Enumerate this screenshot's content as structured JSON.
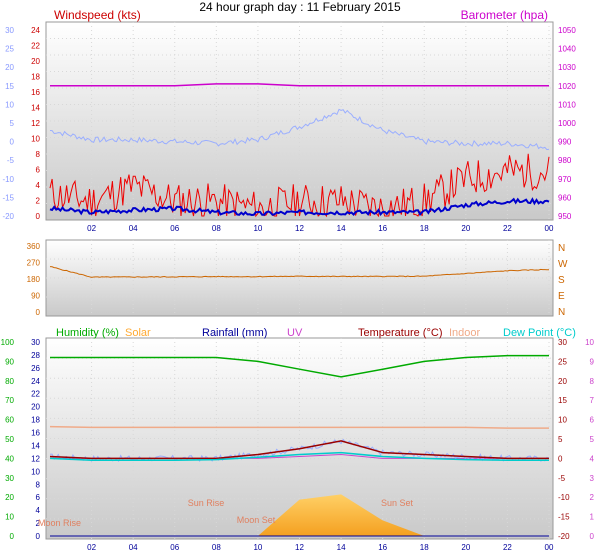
{
  "title": "24 hour graph day : 11 February 2015",
  "time_ticks": [
    "02",
    "04",
    "06",
    "08",
    "10",
    "12",
    "14",
    "16",
    "18",
    "20",
    "22",
    "00"
  ],
  "colors": {
    "wind_speed": "#ee0000",
    "wind_avg": "#0000cc",
    "temp_in_wind_panel": "#9aaeff",
    "barometer": "#cc00cc",
    "direction": "#cc6600",
    "humidity": "#00aa00",
    "solar": "#ffaa33",
    "rainfall": "#000099",
    "uv": "#cc44cc",
    "temperature": "#990000",
    "indoor": "#f0aa88",
    "dewpoint": "#00cccc"
  },
  "chart_data": [
    {
      "type": "line",
      "panel": "wind",
      "title": "Windspeed (kts)",
      "right_title": "Barometer (hpa)",
      "x": [
        "00",
        "02",
        "04",
        "06",
        "08",
        "10",
        "12",
        "14",
        "16",
        "18",
        "20",
        "22",
        "00"
      ],
      "series": [
        {
          "name": "Windspeed (kts)",
          "axis": "left",
          "values": [
            3,
            2,
            4,
            2,
            2,
            1,
            2,
            2,
            1,
            2,
            5,
            6,
            6
          ]
        },
        {
          "name": "Barometer (hpa)",
          "axis": "right",
          "values": [
            1020,
            1020,
            1020,
            1020,
            1021,
            1021,
            1020,
            1020,
            1020,
            1020,
            1020,
            1020,
            1020
          ]
        }
      ],
      "avg_wind_values": [
        1,
        0.5,
        0.8,
        1,
        0.5,
        0.3,
        0.5,
        0.5,
        0.5,
        0.5,
        1.5,
        2,
        2
      ],
      "temp_overlay_values": [
        3,
        0.5,
        0.5,
        0,
        -0.5,
        0.5,
        4,
        8.5,
        3,
        0,
        -0.5,
        -0.5,
        -1.5
      ],
      "y_left_ticks": [
        "0",
        "2",
        "4",
        "6",
        "8",
        "10",
        "12",
        "14",
        "16",
        "18",
        "20",
        "22",
        "24"
      ],
      "y_left_range": [
        0,
        25
      ],
      "y_far_left_ticks": [
        "-20",
        "-15",
        "-10",
        "-5",
        "0",
        "5",
        "10",
        "15",
        "20",
        "25",
        "30"
      ],
      "y_far_left_range": [
        -20,
        30
      ],
      "y_right_ticks": [
        "950",
        "960",
        "970",
        "980",
        "990",
        "1000",
        "1010",
        "1020",
        "1030",
        "1040",
        "1050"
      ],
      "y_right_range": [
        950,
        1050
      ]
    },
    {
      "type": "line",
      "panel": "direction",
      "x": [
        "00",
        "02",
        "04",
        "06",
        "08",
        "10",
        "12",
        "14",
        "16",
        "18",
        "20",
        "22",
        "00"
      ],
      "series": [
        {
          "name": "Wind Direction",
          "values": [
            248,
            190,
            191,
            192,
            193,
            193,
            195,
            194,
            194,
            195,
            210,
            225,
            232
          ]
        }
      ],
      "y_ticks": [
        "0",
        "90",
        "180",
        "270",
        "360"
      ],
      "y_range": [
        0,
        360
      ],
      "compass_labels": [
        "N",
        "W",
        "S",
        "E",
        "N"
      ]
    },
    {
      "type": "line",
      "panel": "humidity",
      "x": [
        "00",
        "02",
        "04",
        "06",
        "08",
        "10",
        "12",
        "14",
        "16",
        "18",
        "20",
        "22",
        "00"
      ],
      "series": [
        {
          "name": "Humidity (%)",
          "axis": "humidity",
          "values": [
            92,
            92,
            92,
            92,
            92,
            90,
            86,
            82,
            86,
            90,
            92,
            93,
            93
          ]
        },
        {
          "name": "Temperature (°C)",
          "axis": "temperature",
          "values": [
            0.5,
            0,
            0,
            0,
            0,
            1,
            2.5,
            4.5,
            1.5,
            1,
            0.5,
            0,
            0
          ]
        },
        {
          "name": "Indoor",
          "axis": "temperature",
          "values": [
            8.2,
            8,
            8,
            8,
            8,
            8,
            8,
            8,
            8,
            8,
            8,
            7.8,
            7.8
          ]
        },
        {
          "name": "Dew Point (°C)",
          "axis": "temperature",
          "values": [
            0,
            -0.5,
            -0.5,
            -0.5,
            -0.3,
            0.3,
            1,
            1.5,
            0.5,
            0,
            -0.3,
            -0.5,
            -0.5
          ]
        },
        {
          "name": "Solar",
          "axis": "solar",
          "values": [
            0,
            0,
            0,
            0,
            0,
            0,
            140,
            160,
            60,
            0,
            0,
            0,
            0
          ]
        },
        {
          "name": "UV",
          "axis": "temperature",
          "values": [
            0,
            0,
            0,
            0,
            0,
            0,
            0.5,
            1,
            0,
            0,
            0,
            0,
            0
          ]
        },
        {
          "name": "Rainfall (mm)",
          "axis": "rain",
          "values": [
            0,
            0,
            0,
            0,
            0,
            0,
            0,
            0,
            0,
            0,
            0,
            0,
            0
          ]
        }
      ],
      "y_humidity_ticks": [
        "0",
        "10",
        "20",
        "30",
        "40",
        "50",
        "60",
        "70",
        "80",
        "90",
        "100"
      ],
      "y_humidity_range": [
        0,
        100
      ],
      "y_rain_ticks": [
        "0",
        "2",
        "4",
        "6",
        "8",
        "10",
        "12",
        "14",
        "16",
        "18",
        "20",
        "22",
        "24",
        "26",
        "28",
        "30"
      ],
      "y_temperature_ticks": [
        "-20",
        "-15",
        "-10",
        "-5",
        "0",
        "5",
        "10",
        "15",
        "20",
        "25",
        "30"
      ],
      "y_temperature_range": [
        -20,
        30
      ],
      "y_uv_ticks": [
        "0",
        "1",
        "2",
        "3",
        "4",
        "5",
        "6",
        "7",
        "8",
        "9",
        "10"
      ],
      "legend": [
        "Humidity (%)",
        "Solar",
        "Rainfall (mm)",
        "UV",
        "Temperature (°C)",
        "Indoor",
        "Dew Point (°C)"
      ],
      "annotations": [
        "Moon Rise",
        "Sun Rise",
        "Sun Set",
        "Moon Set"
      ]
    }
  ]
}
